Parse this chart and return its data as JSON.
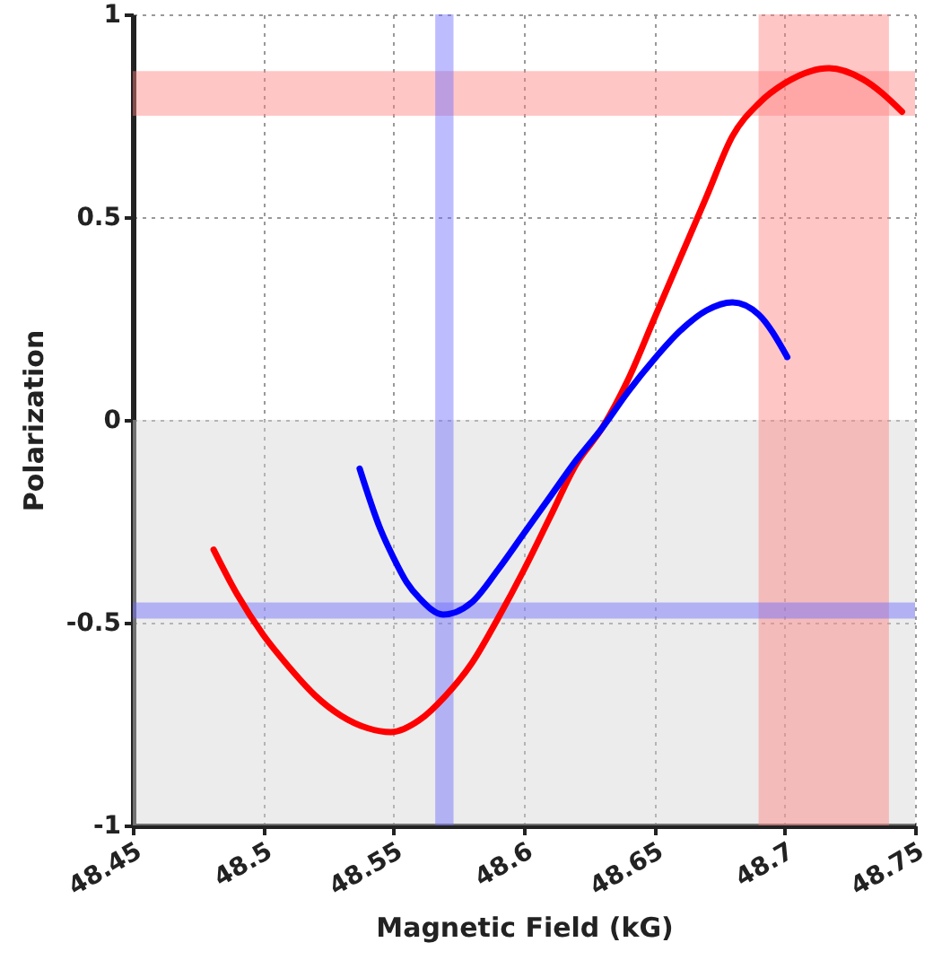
{
  "chart_data": {
    "type": "line",
    "xlabel": "Magnetic Field (kG)",
    "ylabel": "Polarization",
    "xlim": [
      48.45,
      48.75
    ],
    "xticks": [
      48.45,
      48.5,
      48.55,
      48.6,
      48.65,
      48.7,
      48.75
    ],
    "ylim": [
      -1,
      1
    ],
    "yticks": [
      -1,
      -0.5,
      0,
      0.5,
      1
    ],
    "grid": true,
    "line_style": "solid",
    "marker": "none",
    "bands": [
      {
        "axis": "y",
        "from": -1,
        "to": 0,
        "color": "#d4d4d4"
      },
      {
        "axis": "y",
        "from": 0.75,
        "to": 0.86,
        "color": "#ff8080"
      },
      {
        "axis": "x",
        "from": 48.69,
        "to": 48.74,
        "color": "#ff8080"
      },
      {
        "axis": "y",
        "from": -0.49,
        "to": -0.45,
        "color": "#6b6bff"
      },
      {
        "axis": "x",
        "from": 48.566,
        "to": 48.573,
        "color": "#6b6bff"
      }
    ],
    "series": [
      {
        "color": "#ff0000",
        "x": [
          48.481,
          48.49,
          48.5,
          48.51,
          48.52,
          48.53,
          48.54,
          48.549,
          48.56,
          48.57,
          48.58,
          48.59,
          48.6,
          48.61,
          48.62,
          48.63,
          48.64,
          48.65,
          48.66,
          48.67,
          48.68,
          48.69,
          48.7,
          48.71,
          48.717,
          48.73,
          48.745
        ],
        "values": [
          -0.32,
          -0.43,
          -0.53,
          -0.61,
          -0.68,
          -0.73,
          -0.76,
          -0.77,
          -0.74,
          -0.68,
          -0.6,
          -0.49,
          -0.37,
          -0.24,
          -0.11,
          -0.02,
          0.1,
          0.25,
          0.4,
          0.55,
          0.7,
          0.78,
          0.83,
          0.86,
          0.867,
          0.84,
          0.76
        ]
      },
      {
        "color": "#0000ff",
        "x": [
          48.537,
          48.545,
          48.55,
          48.555,
          48.56,
          48.569,
          48.58,
          48.59,
          48.6,
          48.61,
          48.62,
          48.63,
          48.64,
          48.65,
          48.66,
          48.67,
          48.68,
          48.69,
          48.701
        ],
        "values": [
          -0.12,
          -0.27,
          -0.34,
          -0.4,
          -0.44,
          -0.48,
          -0.45,
          -0.37,
          -0.28,
          -0.19,
          -0.1,
          -0.02,
          0.07,
          0.15,
          0.22,
          0.27,
          0.29,
          0.26,
          0.155
        ]
      }
    ]
  }
}
